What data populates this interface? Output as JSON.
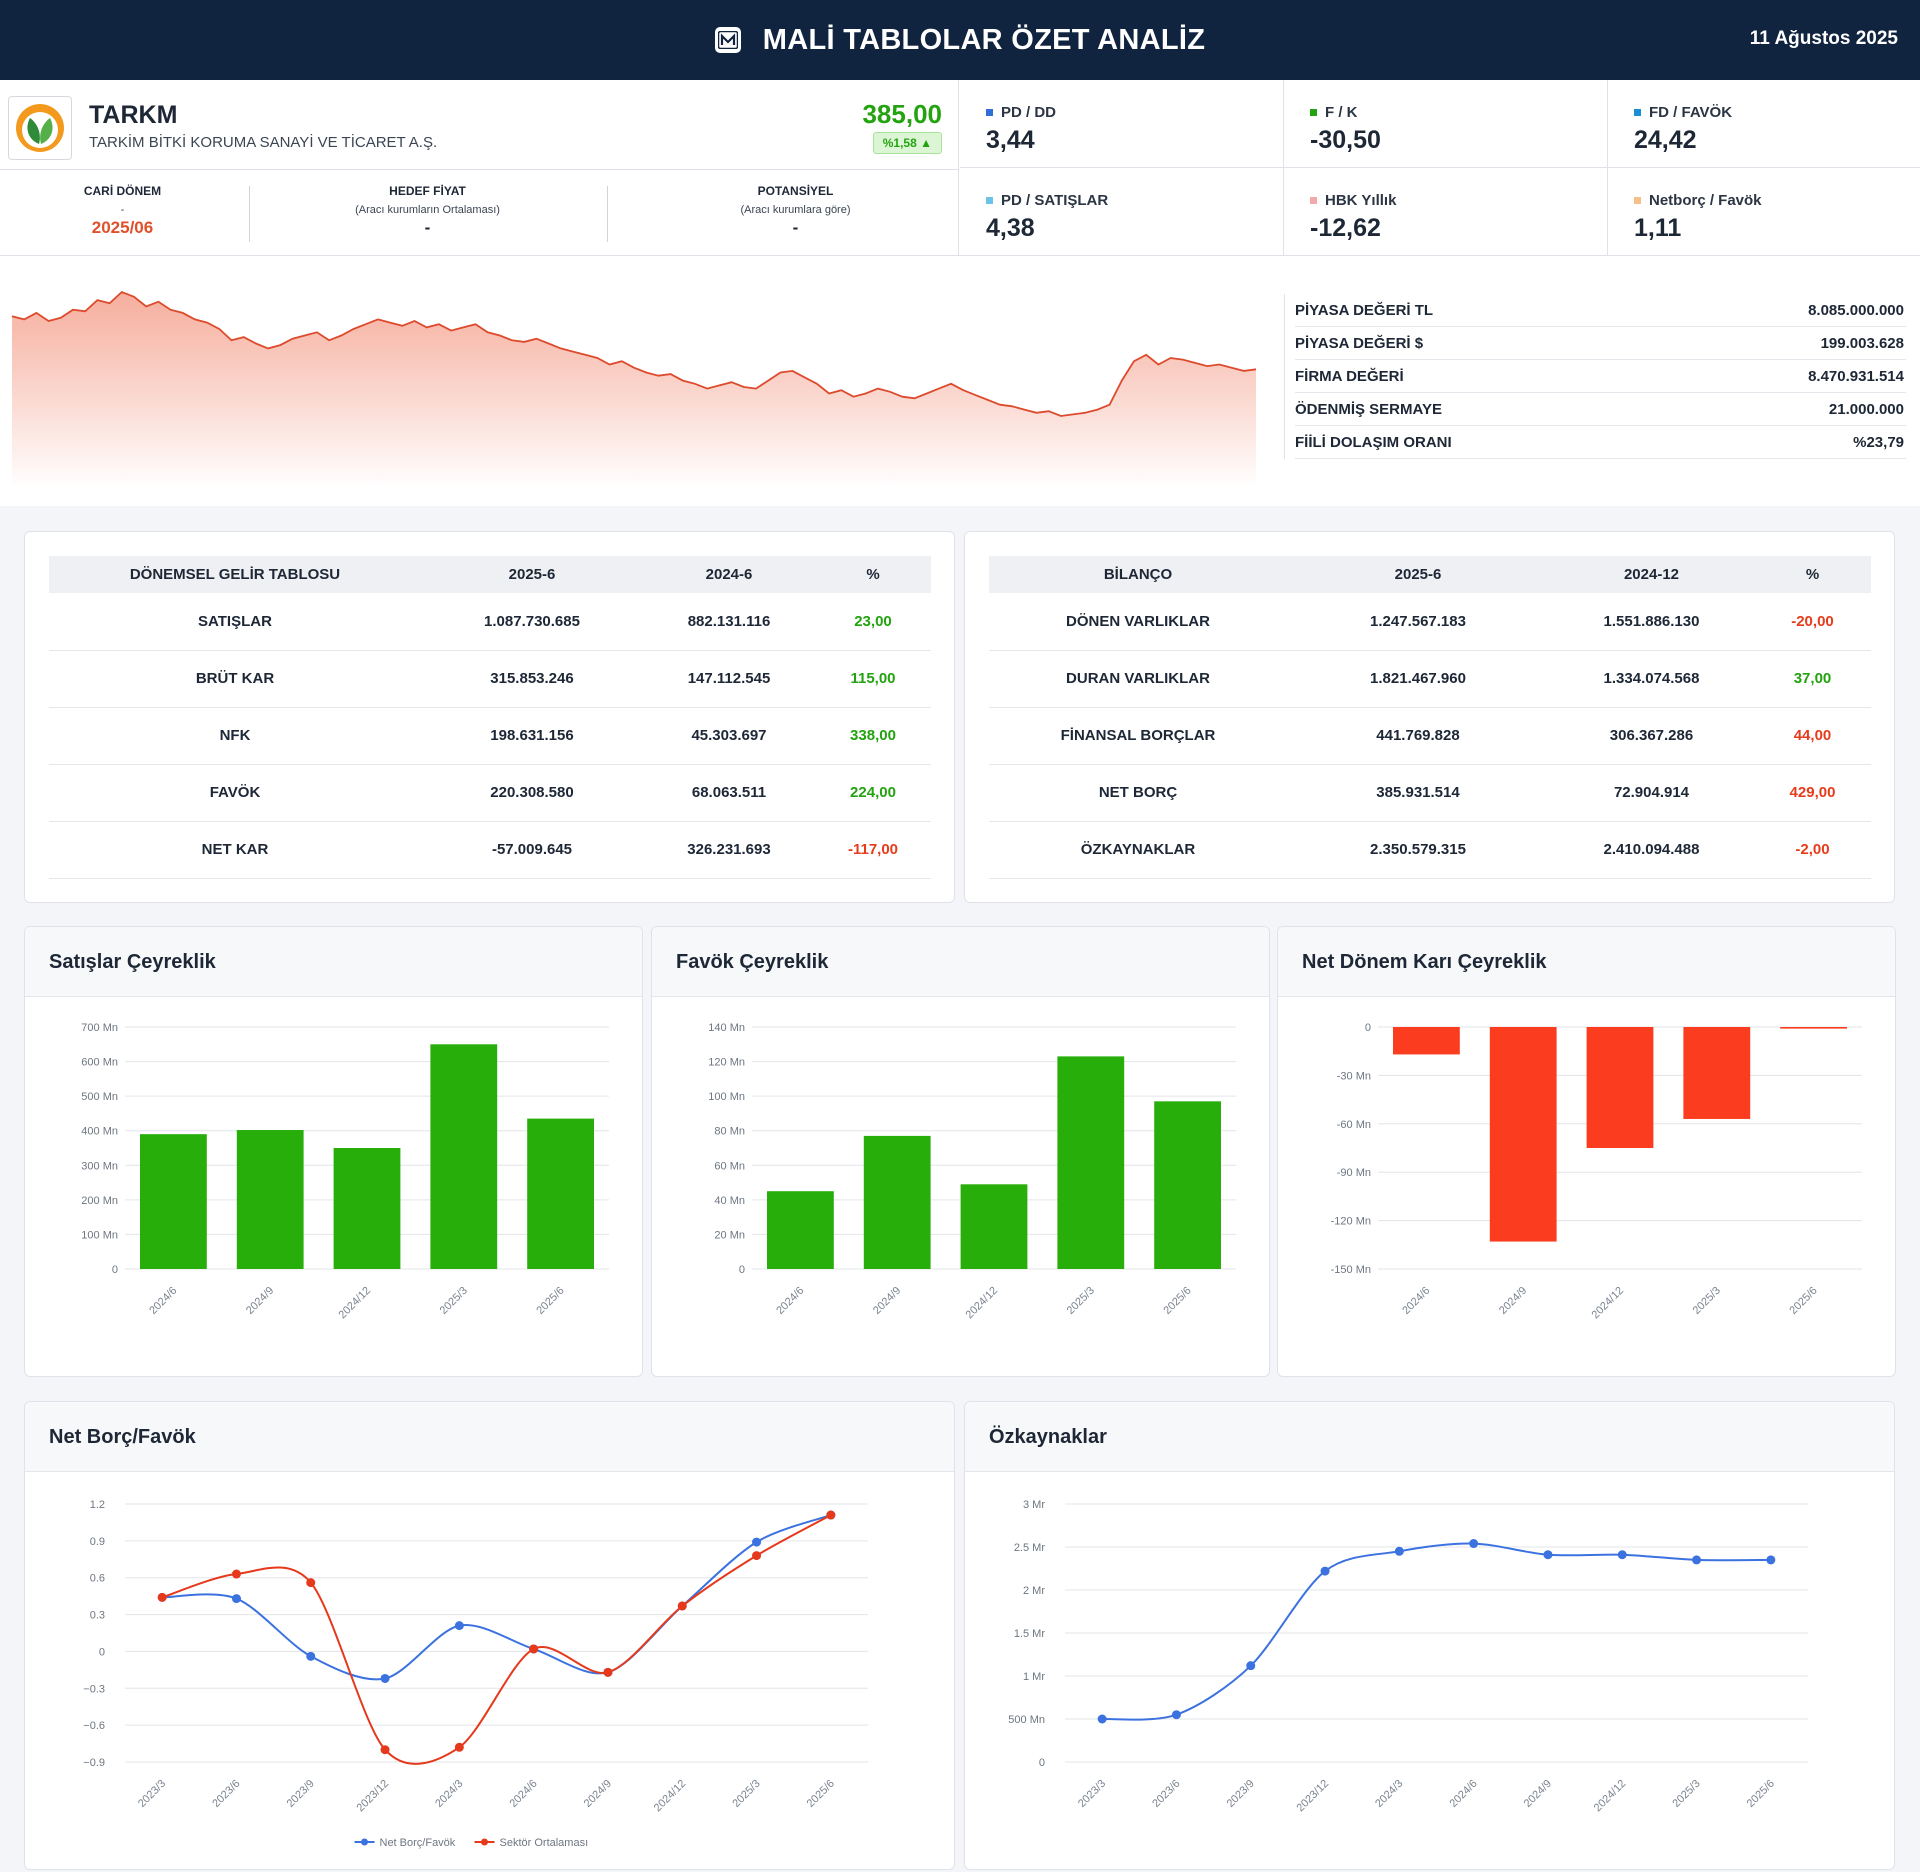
{
  "header": {
    "title": "MALİ TABLOLAR ÖZET ANALİZ",
    "date": "11 Ağustos 2025",
    "logo_icon": "m-logo-icon"
  },
  "company": {
    "ticker": "TARKM",
    "name": "TARKİM BİTKİ KORUMA SANAYİ VE TİCARET A.Ş.",
    "price": "385,00",
    "change": "%1,58 ▲",
    "logo_icon": "leaf-logo-icon"
  },
  "period": {
    "current_label": "CARİ DÖNEM",
    "current_dash": "-",
    "current_value": "2025/06",
    "target_label": "HEDEF FİYAT",
    "target_sub": "(Aracı kurumların Ortalaması)",
    "target_value": "-",
    "potential_label": "POTANSİYEL",
    "potential_sub": "(Aracı kurumlara göre)",
    "potential_value": "-"
  },
  "ratios": [
    {
      "label": "PD / DD",
      "value": "3,44",
      "color": "#2f6fd6"
    },
    {
      "label": "F / K",
      "value": "-30,50",
      "color": "#23a30f"
    },
    {
      "label": "FD / FAVÖK",
      "value": "24,42",
      "color": "#1a8fd6"
    },
    {
      "label": "PD / SATIŞLAR",
      "value": "4,38",
      "color": "#6cc3e8"
    },
    {
      "label": "HBK Yıllık",
      "value": "-12,62",
      "color": "#f2a9a9"
    },
    {
      "label": "Netborç / Favök",
      "value": "1,11",
      "color": "#f6c08a"
    }
  ],
  "market": [
    {
      "label": "PİYASA DEĞERİ TL",
      "value": "8.085.000.000"
    },
    {
      "label": "PİYASA DEĞERİ $",
      "value": "199.003.628"
    },
    {
      "label": "FİRMA DEĞERİ",
      "value": "8.470.931.514"
    },
    {
      "label": "ÖDENMİŞ SERMAYE",
      "value": "21.000.000"
    },
    {
      "label": "FİİLİ DOLAŞIM ORANI",
      "value": "%23,79"
    }
  ],
  "price_history": [
    100,
    98,
    102,
    97,
    99,
    104,
    103,
    110,
    108,
    115,
    112,
    106,
    109,
    104,
    102,
    98,
    96,
    92,
    85,
    87,
    83,
    80,
    82,
    86,
    88,
    90,
    85,
    88,
    92,
    95,
    98,
    96,
    94,
    97,
    93,
    95,
    91,
    93,
    95,
    90,
    88,
    85,
    84,
    86,
    83,
    80,
    78,
    76,
    74,
    70,
    72,
    68,
    65,
    63,
    64,
    60,
    58,
    55,
    57,
    59,
    56,
    55,
    60,
    65,
    66,
    62,
    58,
    52,
    54,
    50,
    52,
    55,
    53,
    50,
    49,
    52,
    55,
    58,
    54,
    51,
    48,
    45,
    44,
    42,
    40,
    41,
    38,
    39,
    40,
    42,
    45,
    60,
    72,
    76,
    70,
    74,
    73,
    71,
    69,
    70,
    68,
    66,
    67
  ],
  "income": {
    "headers": [
      "DÖNEMSEL GELİR TABLOSU",
      "2025-6",
      "2024-6",
      "%"
    ],
    "rows": [
      {
        "name": "SATIŞLAR",
        "a": "1.087.730.685",
        "b": "882.131.116",
        "pct": "23,00",
        "dir": "pos"
      },
      {
        "name": "BRÜT KAR",
        "a": "315.853.246",
        "b": "147.112.545",
        "pct": "115,00",
        "dir": "pos"
      },
      {
        "name": "NFK",
        "a": "198.631.156",
        "b": "45.303.697",
        "pct": "338,00",
        "dir": "pos"
      },
      {
        "name": "FAVÖK",
        "a": "220.308.580",
        "b": "68.063.511",
        "pct": "224,00",
        "dir": "pos"
      },
      {
        "name": "NET KAR",
        "a": "-57.009.645",
        "b": "326.231.693",
        "pct": "-117,00",
        "dir": "neg"
      }
    ]
  },
  "balance": {
    "headers": [
      "BİLANÇO",
      "2025-6",
      "2024-12",
      "%"
    ],
    "rows": [
      {
        "name": "DÖNEN VARLIKLAR",
        "a": "1.247.567.183",
        "b": "1.551.886.130",
        "pct": "-20,00",
        "dir": "neg"
      },
      {
        "name": "DURAN VARLIKLAR",
        "a": "1.821.467.960",
        "b": "1.334.074.568",
        "pct": "37,00",
        "dir": "pos"
      },
      {
        "name": "FİNANSAL BORÇLAR",
        "a": "441.769.828",
        "b": "306.367.286",
        "pct": "44,00",
        "dir": "neg"
      },
      {
        "name": "NET BORÇ",
        "a": "385.931.514",
        "b": "72.904.914",
        "pct": "429,00",
        "dir": "neg"
      },
      {
        "name": "ÖZKAYNAKLAR",
        "a": "2.350.579.315",
        "b": "2.410.094.488",
        "pct": "-2,00",
        "dir": "neg"
      }
    ]
  },
  "chart_data": [
    {
      "type": "bar",
      "title": "Satışlar Çeyreklik",
      "categories": [
        "2024/6",
        "2024/9",
        "2024/12",
        "2025/3",
        "2025/6"
      ],
      "values": [
        390,
        402,
        350,
        650,
        435
      ],
      "unit": "Mn",
      "ylim": [
        0,
        700
      ],
      "ticks": [
        0,
        100,
        200,
        300,
        400,
        500,
        600,
        700
      ],
      "tick_labels": [
        "0",
        "100 Mn",
        "200 Mn",
        "300 Mn",
        "400 Mn",
        "500 Mn",
        "600 Mn",
        "700 Mn"
      ],
      "color": "#27ae0a"
    },
    {
      "type": "bar",
      "title": "Favök Çeyreklik",
      "categories": [
        "2024/6",
        "2024/9",
        "2024/12",
        "2025/3",
        "2025/6"
      ],
      "values": [
        45,
        77,
        49,
        123,
        97
      ],
      "unit": "Mn",
      "ylim": [
        0,
        140
      ],
      "ticks": [
        0,
        20,
        40,
        60,
        80,
        100,
        120,
        140
      ],
      "tick_labels": [
        "0",
        "20 Mn",
        "40 Mn",
        "60 Mn",
        "80 Mn",
        "100 Mn",
        "120 Mn",
        "140 Mn"
      ],
      "color": "#27ae0a"
    },
    {
      "type": "bar",
      "title": "Net Dönem Karı Çeyreklik",
      "categories": [
        "2024/6",
        "2024/9",
        "2024/12",
        "2025/3",
        "2025/6"
      ],
      "values": [
        -17,
        -133,
        -75,
        -57,
        -1
      ],
      "unit": "Mn",
      "ylim": [
        -150,
        0
      ],
      "ticks": [
        0,
        -30,
        -60,
        -90,
        -120,
        -150
      ],
      "tick_labels": [
        "0",
        "-30 Mn",
        "-60 Mn",
        "-90 Mn",
        "-120 Mn",
        "-150 Mn"
      ],
      "color": "#fb3c1e"
    },
    {
      "type": "line",
      "title": "Net Borç/Favök",
      "categories": [
        "2023/3",
        "2023/6",
        "2023/9",
        "2023/12",
        "2024/3",
        "2024/6",
        "2024/9",
        "2024/12",
        "2025/3",
        "2025/6"
      ],
      "series": [
        {
          "name": "Net Borç/Favök",
          "values": [
            0.44,
            0.43,
            -0.04,
            -0.22,
            0.21,
            0.02,
            -0.17,
            0.37,
            0.89,
            1.11
          ],
          "color": "#3b72e0"
        },
        {
          "name": "Sektör Ortalaması",
          "values": [
            0.44,
            0.63,
            0.56,
            -0.8,
            -0.78,
            0.02,
            -0.17,
            0.37,
            0.78,
            1.11
          ],
          "color": "#e6391c"
        }
      ],
      "ylim": [
        -0.9,
        1.2
      ],
      "ticks": [
        1.2,
        0.9,
        0.6,
        0.3,
        0,
        -0.3,
        -0.6,
        -0.9
      ],
      "tick_labels": [
        "1.2",
        "0.9",
        "0.6",
        "0.3",
        "0",
        "−0.3",
        "−0.6",
        "−0.9"
      ],
      "legend": "bottom"
    },
    {
      "type": "line",
      "title": "Özkaynaklar",
      "categories": [
        "2023/3",
        "2023/6",
        "2023/9",
        "2023/12",
        "2024/3",
        "2024/6",
        "2024/9",
        "2024/12",
        "2025/3",
        "2025/6"
      ],
      "series": [
        {
          "values": [
            0.5,
            0.55,
            1.12,
            2.22,
            2.45,
            2.54,
            2.41,
            2.41,
            2.35,
            2.35
          ],
          "color": "#3b72e0"
        }
      ],
      "ylim": [
        0,
        3
      ],
      "ticks": [
        3,
        2.5,
        2,
        1.5,
        1,
        0.5,
        0
      ],
      "tick_labels": [
        "3 Mr",
        "2.5 Mr",
        "2 Mr",
        "1.5 Mr",
        "1 Mr",
        "500 Mn",
        "0"
      ]
    }
  ]
}
